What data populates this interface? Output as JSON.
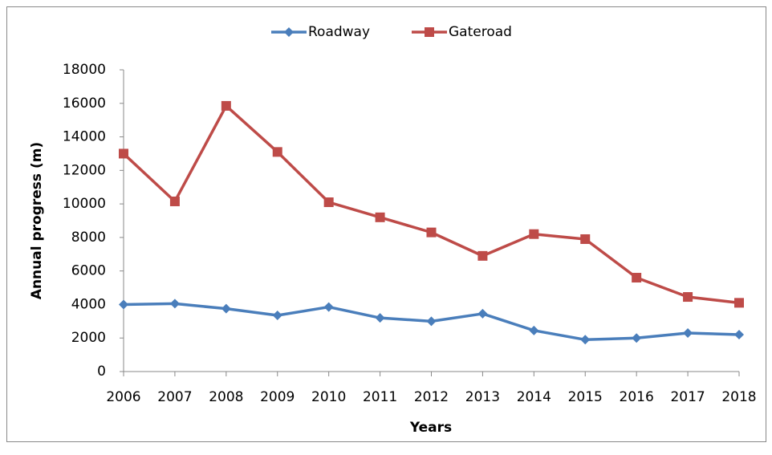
{
  "chart_data": {
    "type": "line",
    "x_label": "Years",
    "y_label": "Annual progress (m)",
    "categories": [
      "2006",
      "2007",
      "2008",
      "2009",
      "2010",
      "2011",
      "2012",
      "2013",
      "2014",
      "2015",
      "2016",
      "2017",
      "2018"
    ],
    "series": [
      {
        "name": "Roadway",
        "color": "#4a7ebb",
        "marker": "diamond",
        "values": [
          4000,
          4050,
          3750,
          3350,
          3850,
          3200,
          3000,
          3450,
          2450,
          1900,
          2000,
          2300,
          2200
        ]
      },
      {
        "name": "Gateroad",
        "color": "#be4b48",
        "marker": "square",
        "values": [
          13000,
          10150,
          15850,
          13100,
          10100,
          9200,
          8300,
          6900,
          8200,
          7900,
          5600,
          4450,
          4100
        ]
      }
    ],
    "ylim": [
      0,
      18000
    ],
    "yticks": [
      0,
      2000,
      4000,
      6000,
      8000,
      10000,
      12000,
      14000,
      16000,
      18000
    ],
    "grid": false,
    "legend": "top"
  }
}
